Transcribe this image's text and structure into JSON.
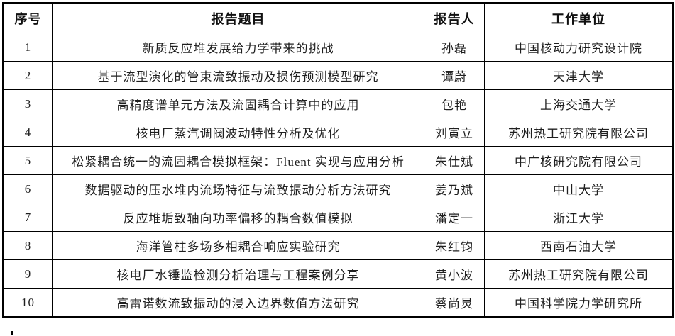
{
  "table": {
    "headers": {
      "no": "序号",
      "title": "报告题目",
      "presenter": "报告人",
      "org": "工作单位"
    },
    "rows": [
      {
        "no": "1",
        "title": "新质反应堆发展给力学带来的挑战",
        "presenter": "孙磊",
        "org": "中国核动力研究设计院"
      },
      {
        "no": "2",
        "title": "基于流型演化的管束流致振动及损伤预测模型研究",
        "presenter": "谭蔚",
        "org": "天津大学"
      },
      {
        "no": "3",
        "title": "高精度谱单元方法及流固耦合计算中的应用",
        "presenter": "包艳",
        "org": "上海交通大学"
      },
      {
        "no": "4",
        "title": "核电厂蒸汽调阀波动特性分析及优化",
        "presenter": "刘寅立",
        "org": "苏州热工研究院有限公司"
      },
      {
        "no": "5",
        "title": "松紧耦合统一的流固耦合模拟框架：Fluent 实现与应用分析",
        "presenter": "朱仕斌",
        "org": "中广核研究院有限公司"
      },
      {
        "no": "6",
        "title": "数据驱动的压水堆内流场特征与流致振动分析方法研究",
        "presenter": "姜乃斌",
        "org": "中山大学"
      },
      {
        "no": "7",
        "title": "反应堆垢致轴向功率偏移的耦合数值模拟",
        "presenter": "潘定一",
        "org": "浙江大学"
      },
      {
        "no": "8",
        "title": "海洋管柱多场多相耦合响应实验研究",
        "presenter": "朱红钧",
        "org": "西南石油大学"
      },
      {
        "no": "9",
        "title": "核电厂水锤监检测分析治理与工程案例分享",
        "presenter": "黄小波",
        "org": "苏州热工研究院有限公司"
      },
      {
        "no": "10",
        "title": "高雷诺数流致振动的浸入边界数值方法研究",
        "presenter": "蔡尚炅",
        "org": "中国科学院力学研究所"
      }
    ]
  },
  "colors": {
    "border": "#000000",
    "text": "#1f1f1f",
    "background": "#ffffff"
  }
}
